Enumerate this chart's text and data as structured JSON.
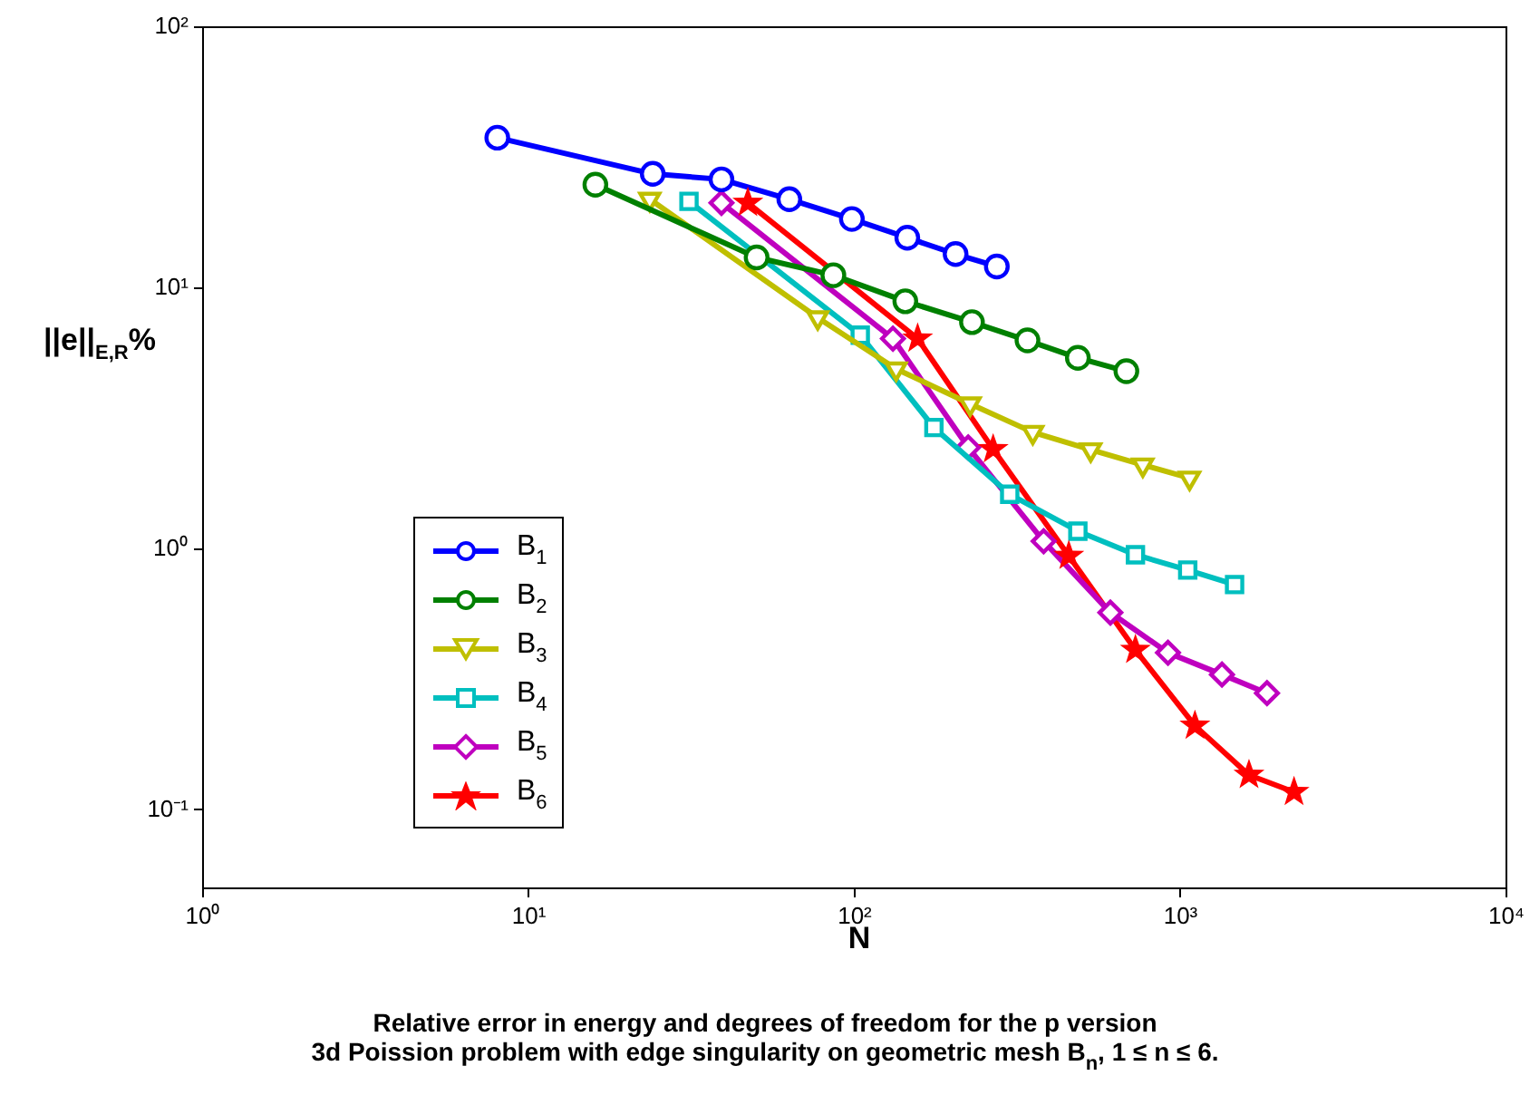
{
  "chart_data": {
    "type": "line",
    "xlabel": "N",
    "ylabel": "||e||$_{E,R}$%",
    "annotations": [
      "Relative error in energy and degrees of freedom for the p version",
      "3d Poission problem with edge singularity on geometric mesh B$_{n}$, 1 ≤ n ≤ 6."
    ],
    "log": "xy",
    "grid": false,
    "legend": "bottom left",
    "xlim": [
      1,
      10000
    ],
    "ylim": [
      0.05,
      100
    ],
    "xticks": [
      {
        "value": 1,
        "label": "10⁰"
      },
      {
        "value": 10,
        "label": "10¹"
      },
      {
        "value": 100,
        "label": "10²"
      },
      {
        "value": 1000,
        "label": "10³"
      },
      {
        "value": 10000,
        "label": "10⁴"
      }
    ],
    "yticks": [
      {
        "value": 0.1,
        "label": "10⁻¹"
      },
      {
        "value": 1,
        "label": "10⁰"
      },
      {
        "value": 10,
        "label": "10¹"
      },
      {
        "value": 100,
        "label": "10²"
      }
    ],
    "series": [
      {
        "name": "B$_{1}$",
        "color": "#0000ff",
        "marker": "circle",
        "x": [
          8,
          24,
          39,
          63,
          98,
          145,
          204,
          273
        ],
        "values": [
          37.7,
          27.4,
          26.1,
          21.9,
          18.4,
          15.6,
          13.5,
          12.1
        ]
      },
      {
        "name": "B$_{2}$",
        "color": "#008000",
        "marker": "circle",
        "x": [
          16,
          50,
          86,
          143,
          229,
          339,
          484,
          682
        ],
        "values": [
          24.9,
          13.1,
          11.2,
          8.9,
          7.4,
          6.3,
          5.4,
          4.8
        ]
      },
      {
        "name": "B$_{3}$",
        "color": "#bfbf00",
        "marker": "triangle",
        "x": [
          23.5,
          77,
          134,
          226,
          352,
          530,
          766,
          1066
        ],
        "values": [
          21.9,
          7.7,
          4.9,
          3.6,
          2.8,
          2.4,
          2.1,
          1.87
        ]
      },
      {
        "name": "B$_{4}$",
        "color": "#00bfbf",
        "marker": "square",
        "x": [
          31,
          104,
          175,
          299,
          484,
          727,
          1052,
          1465
        ],
        "values": [
          21.5,
          6.6,
          2.92,
          1.62,
          1.17,
          0.95,
          0.83,
          0.73
        ]
      },
      {
        "name": "B$_{5}$",
        "color": "#bf00bf",
        "marker": "diamond",
        "x": [
          39,
          131,
          223,
          380,
          609,
          915,
          1340,
          1842
        ],
        "values": [
          21.2,
          6.4,
          2.45,
          1.07,
          0.57,
          0.4,
          0.33,
          0.28
        ]
      },
      {
        "name": "B$_{6}$",
        "color": "#ff0000",
        "marker": "star",
        "x": [
          47,
          156,
          266,
          454,
          727,
          1107,
          1622,
          2230
        ],
        "values": [
          21.2,
          6.4,
          2.41,
          0.94,
          0.41,
          0.21,
          0.136,
          0.117
        ]
      }
    ]
  }
}
